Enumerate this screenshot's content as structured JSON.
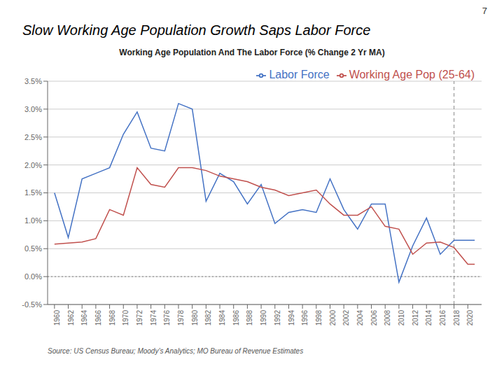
{
  "chart_data": {
    "type": "line",
    "title": "Working Age Population And The Labor Force (% Change 2 Yr MA)",
    "subtitle": "Slow Working Age Population Growth Saps Labor Force",
    "slide_number": "7",
    "source": "Source: US Census Bureau; Moody’s Analytics; MO Bureau of Revenue Estimates",
    "x": [
      1960,
      1962,
      1964,
      1966,
      1968,
      1970,
      1972,
      1974,
      1976,
      1978,
      1980,
      1982,
      1984,
      1986,
      1988,
      1990,
      1992,
      1994,
      1996,
      1998,
      2000,
      2002,
      2004,
      2006,
      2008,
      2010,
      2012,
      2014,
      2016,
      2018,
      2020,
      2021
    ],
    "series": [
      {
        "name": "Labor Force",
        "color": "#4472C4",
        "values": [
          1.5,
          0.7,
          1.75,
          1.85,
          1.95,
          2.55,
          2.95,
          2.3,
          2.25,
          3.1,
          3.0,
          1.35,
          1.85,
          1.7,
          1.3,
          1.65,
          0.95,
          1.15,
          1.2,
          1.15,
          1.75,
          1.2,
          0.85,
          1.3,
          1.3,
          -0.1,
          0.55,
          1.05,
          0.4,
          0.65,
          0.65,
          0.65
        ]
      },
      {
        "name": "Working Age Pop (25-64)",
        "color": "#C0504D",
        "values": [
          0.58,
          0.6,
          0.62,
          0.68,
          1.2,
          1.1,
          1.95,
          1.65,
          1.6,
          1.95,
          1.95,
          1.9,
          1.8,
          1.75,
          1.7,
          1.6,
          1.55,
          1.45,
          1.5,
          1.55,
          1.3,
          1.1,
          1.1,
          1.25,
          0.9,
          0.85,
          0.4,
          0.6,
          0.62,
          0.52,
          0.22,
          0.22
        ]
      }
    ],
    "xlim": [
      1959,
      2022
    ],
    "xticks": [
      1960,
      1962,
      1964,
      1966,
      1968,
      1970,
      1972,
      1974,
      1976,
      1978,
      1980,
      1982,
      1984,
      1986,
      1988,
      1990,
      1992,
      1994,
      1996,
      1998,
      2000,
      2002,
      2004,
      2006,
      2008,
      2010,
      2012,
      2014,
      2016,
      2018,
      2020
    ],
    "ylim": [
      -0.5,
      3.5
    ],
    "yticks": [
      {
        "value": -0.5,
        "label": "-0.5%"
      },
      {
        "value": 0.0,
        "label": "0.0%"
      },
      {
        "value": 0.5,
        "label": "0.5%"
      },
      {
        "value": 1.0,
        "label": "1.0%"
      },
      {
        "value": 1.5,
        "label": "1.5%"
      },
      {
        "value": 2.0,
        "label": "2.0%"
      },
      {
        "value": 2.5,
        "label": "2.5%"
      },
      {
        "value": 3.0,
        "label": "3.0%"
      },
      {
        "value": 3.5,
        "label": "3.5%"
      }
    ],
    "vline": 2018,
    "hline": 0.0,
    "grid": true,
    "legend": "upper right"
  }
}
